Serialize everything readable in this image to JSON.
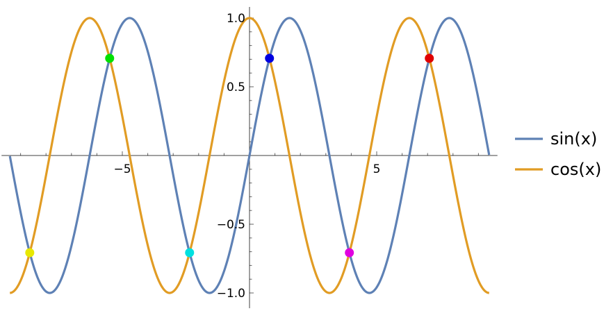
{
  "chart_data": {
    "type": "line",
    "title": "",
    "xlabel": "",
    "ylabel": "",
    "xlim": [
      -9.42,
      9.42
    ],
    "ylim": [
      -1.0,
      1.0
    ],
    "grid": false,
    "legend_position": "right",
    "x_ticks": [
      {
        "value": -5,
        "label": "−5"
      },
      {
        "value": 5,
        "label": "5"
      }
    ],
    "y_ticks": [
      {
        "value": 1.0,
        "label": "1.0"
      },
      {
        "value": 0.5,
        "label": "0.5"
      },
      {
        "value": -0.5,
        "label": "−0.5"
      },
      {
        "value": -1.0,
        "label": "−1.0"
      }
    ],
    "series": [
      {
        "name": "sin(x)",
        "function": "sin",
        "color": "#5e81b5"
      },
      {
        "name": "cos(x)",
        "function": "cos",
        "color": "#e19c24"
      }
    ],
    "intersection_points": [
      {
        "x": -8.639,
        "y": -0.7071,
        "color": "#e8e800"
      },
      {
        "x": -5.498,
        "y": 0.7071,
        "color": "#00e000"
      },
      {
        "x": -2.356,
        "y": -0.7071,
        "color": "#00e0e0"
      },
      {
        "x": 0.785,
        "y": 0.7071,
        "color": "#0000e0"
      },
      {
        "x": 3.927,
        "y": -0.7071,
        "color": "#e000e0"
      },
      {
        "x": 7.069,
        "y": 0.7071,
        "color": "#e00000"
      }
    ]
  }
}
